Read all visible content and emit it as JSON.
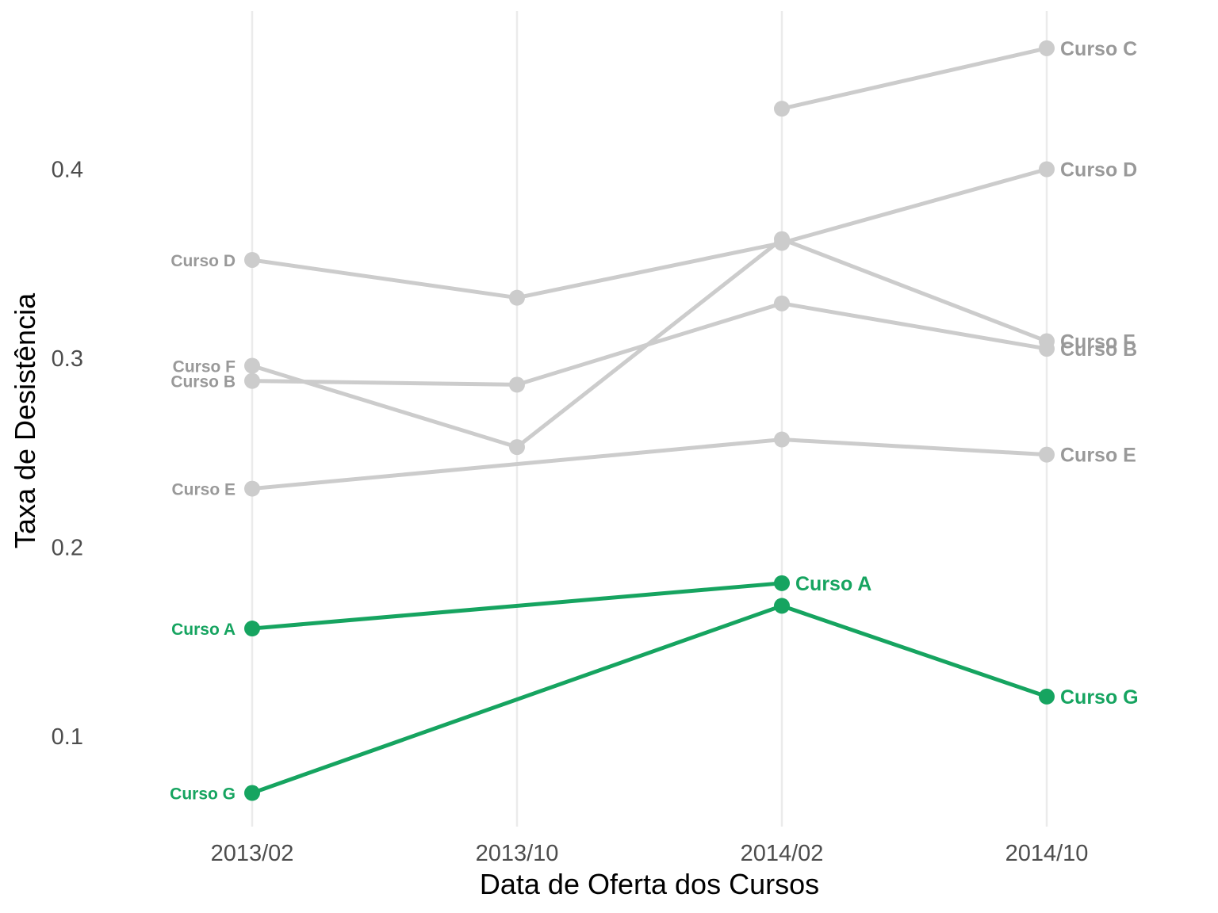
{
  "chart_data": {
    "type": "line",
    "xlabel": "Data de Oferta dos Cursos",
    "ylabel": "Taxa de Desistência",
    "categories": [
      "2013/02",
      "2013/10",
      "2014/02",
      "2014/10"
    ],
    "y_ticks": [
      0.1,
      0.2,
      0.3,
      0.4
    ],
    "ylim": [
      0.05,
      0.48
    ],
    "grid": "vertical-major",
    "legend": "none",
    "highlight_color": "#16a460",
    "muted_color": "#cccccc",
    "muted_label_color": "#999999",
    "series": [
      {
        "name": "Curso C",
        "values": [
          null,
          null,
          0.432,
          0.464
        ],
        "highlight": false
      },
      {
        "name": "Curso D",
        "values": [
          0.352,
          0.332,
          0.361,
          0.4
        ],
        "highlight": false
      },
      {
        "name": "Curso F",
        "values": [
          0.296,
          0.253,
          0.363,
          0.309
        ],
        "highlight": false
      },
      {
        "name": "Curso B",
        "values": [
          0.288,
          0.286,
          0.329,
          0.305
        ],
        "highlight": false
      },
      {
        "name": "Curso E",
        "values": [
          0.231,
          null,
          0.257,
          0.249
        ],
        "highlight": false
      },
      {
        "name": "Curso A",
        "values": [
          0.157,
          null,
          0.181,
          null
        ],
        "highlight": true
      },
      {
        "name": "Curso G",
        "values": [
          0.07,
          null,
          0.169,
          0.121
        ],
        "highlight": true
      }
    ]
  }
}
